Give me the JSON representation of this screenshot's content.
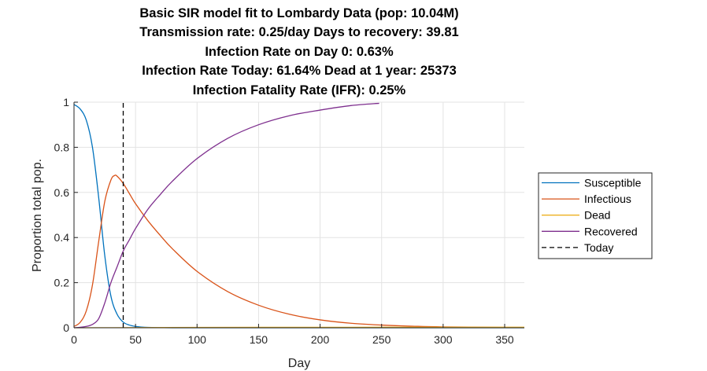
{
  "title_lines": [
    "Basic SIR model fit to Lombardy Data (pop: 10.04M)",
    "Transmission rate: 0.25/day Days to recovery: 39.81",
    "Infection Rate on Day 0: 0.63%",
    "Infection Rate Today: 61.64% Dead at 1 year: 25373",
    "Infection Fatality Rate (IFR): 0.25%"
  ],
  "chart_data": {
    "type": "line",
    "xlabel": "Day",
    "ylabel": "Proportion total pop.",
    "xlim": [
      0,
      366
    ],
    "ylim": [
      0,
      1
    ],
    "xticks": [
      0,
      50,
      100,
      150,
      200,
      250,
      300,
      350
    ],
    "yticks": [
      0,
      0.2,
      0.4,
      0.6,
      0.8,
      1
    ],
    "xtick_labels": [
      "0",
      "50",
      "100",
      "150",
      "200",
      "250",
      "300",
      "350"
    ],
    "ytick_labels": [
      "0",
      "0.2",
      "0.4",
      "0.6",
      "0.8",
      "1"
    ],
    "grid": true,
    "legend_position": "right-outside",
    "today_day": 40,
    "series": [
      {
        "name": "Susceptible",
        "color": "#0072BD",
        "style": "solid",
        "x": [
          0,
          5,
          10,
          15,
          20,
          25,
          30,
          35,
          40,
          45,
          50,
          55,
          60,
          70,
          80,
          100,
          150,
          200,
          250,
          300,
          366
        ],
        "y": [
          0.99,
          0.97,
          0.92,
          0.8,
          0.58,
          0.32,
          0.14,
          0.06,
          0.025,
          0.012,
          0.006,
          0.003,
          0.0015,
          0.0005,
          0.0002,
          0,
          0,
          0,
          0,
          0,
          0
        ]
      },
      {
        "name": "Infectious",
        "color": "#D95319",
        "style": "solid",
        "x": [
          0,
          5,
          10,
          15,
          20,
          25,
          30,
          33,
          35,
          40,
          45,
          50,
          60,
          70,
          80,
          100,
          125,
          150,
          175,
          200,
          225,
          250,
          275,
          300,
          366
        ],
        "y": [
          0.006,
          0.024,
          0.075,
          0.19,
          0.38,
          0.56,
          0.655,
          0.675,
          0.672,
          0.64,
          0.595,
          0.55,
          0.475,
          0.41,
          0.35,
          0.25,
          0.16,
          0.1,
          0.06,
          0.035,
          0.02,
          0.012,
          0.007,
          0.004,
          0.001
        ]
      },
      {
        "name": "Dead",
        "color": "#EDB120",
        "style": "solid",
        "x": [
          0,
          50,
          100,
          150,
          200,
          250,
          300,
          366
        ],
        "y": [
          0,
          0.0008,
          0.0015,
          0.002,
          0.0022,
          0.0024,
          0.0025,
          0.0025
        ]
      },
      {
        "name": "Recovered",
        "color": "#7E2F8E",
        "style": "solid",
        "x": [
          0,
          5,
          10,
          15,
          20,
          25,
          30,
          35,
          40,
          45,
          50,
          60,
          70,
          80,
          100,
          125,
          150,
          175,
          200,
          225,
          248
        ],
        "y": [
          0,
          0.002,
          0.006,
          0.015,
          0.04,
          0.11,
          0.2,
          0.27,
          0.34,
          0.39,
          0.44,
          0.525,
          0.59,
          0.65,
          0.75,
          0.84,
          0.9,
          0.94,
          0.965,
          0.985,
          0.995
        ]
      },
      {
        "name": "Today",
        "color": "#000000",
        "style": "dashed",
        "x": [
          40,
          40
        ],
        "y": [
          0,
          1
        ]
      }
    ]
  }
}
